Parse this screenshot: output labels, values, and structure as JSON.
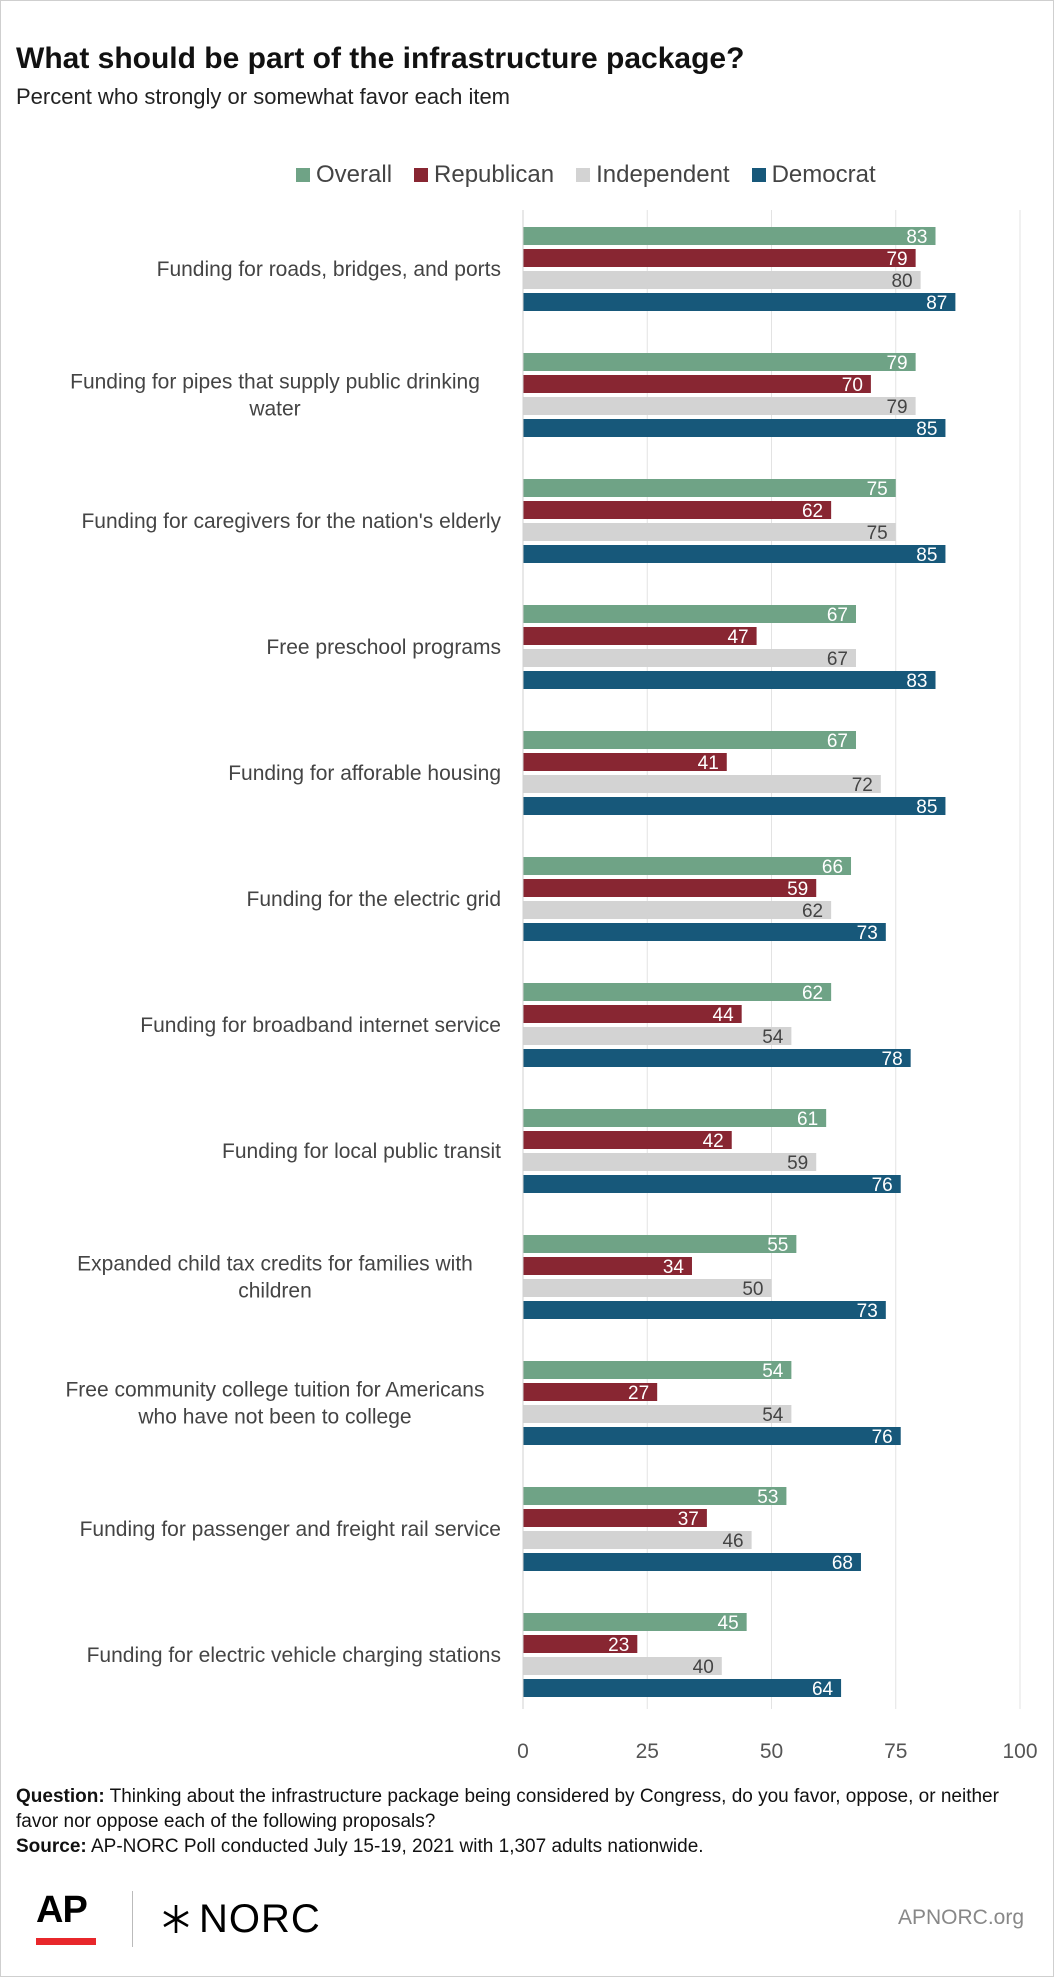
{
  "title": "What should be part of the infrastructure package?",
  "subtitle": "Percent who strongly or somewhat favor each item",
  "legend": [
    {
      "name": "Overall",
      "color": "#6fa386"
    },
    {
      "name": "Republican",
      "color": "#882632"
    },
    {
      "name": "Independent",
      "color": "#d3d3d3"
    },
    {
      "name": "Democrat",
      "color": "#17587a"
    }
  ],
  "chart_data": {
    "type": "bar",
    "orientation": "horizontal",
    "categories": [
      [
        "Funding for roads, bridges, and ports"
      ],
      [
        "Funding for pipes that supply public drinking",
        "water"
      ],
      [
        "Funding for caregivers for the nation's elderly"
      ],
      [
        "Free preschool programs"
      ],
      [
        "Funding for afforable housing"
      ],
      [
        "Funding for the electric grid"
      ],
      [
        "Funding for broadband internet service"
      ],
      [
        "Funding for local public transit"
      ],
      [
        "Expanded child tax credits for families with",
        "children"
      ],
      [
        "Free community college tuition for Americans",
        "who have not been to college"
      ],
      [
        "Funding for passenger and freight rail service"
      ],
      [
        "Funding for electric vehicle charging stations"
      ]
    ],
    "series": [
      {
        "name": "Overall",
        "color": "#6fa386",
        "label_color": "#ffffff",
        "values": [
          83,
          79,
          75,
          67,
          67,
          66,
          62,
          61,
          55,
          54,
          53,
          45
        ]
      },
      {
        "name": "Republican",
        "color": "#882632",
        "label_color": "#ffffff",
        "values": [
          79,
          70,
          62,
          47,
          41,
          59,
          44,
          42,
          34,
          27,
          37,
          23
        ]
      },
      {
        "name": "Independent",
        "color": "#d3d3d3",
        "label_color": "#444444",
        "values": [
          80,
          79,
          75,
          67,
          72,
          62,
          54,
          59,
          50,
          54,
          46,
          40
        ]
      },
      {
        "name": "Democrat",
        "color": "#17587a",
        "label_color": "#ffffff",
        "values": [
          87,
          85,
          85,
          83,
          85,
          73,
          78,
          76,
          73,
          76,
          68,
          64
        ]
      }
    ],
    "xlim": [
      0,
      100
    ],
    "ticks": [
      0,
      25,
      50,
      75,
      100
    ],
    "grid": true,
    "legend_position": "top"
  },
  "footnote": {
    "question_label": "Question:",
    "question_text": " Thinking about the infrastructure package being considered by Congress, do you favor, oppose, or neither favor nor oppose each of the following proposals?",
    "source_label": "Source:",
    "source_text": " AP-NORC Poll conducted July 15-19, 2021 with 1,307 adults nationwide."
  },
  "branding": {
    "ap_logo": "AP",
    "norc_logo": "NORC",
    "norc_icon": "asterisk-icon",
    "site": "APNORC.org"
  }
}
